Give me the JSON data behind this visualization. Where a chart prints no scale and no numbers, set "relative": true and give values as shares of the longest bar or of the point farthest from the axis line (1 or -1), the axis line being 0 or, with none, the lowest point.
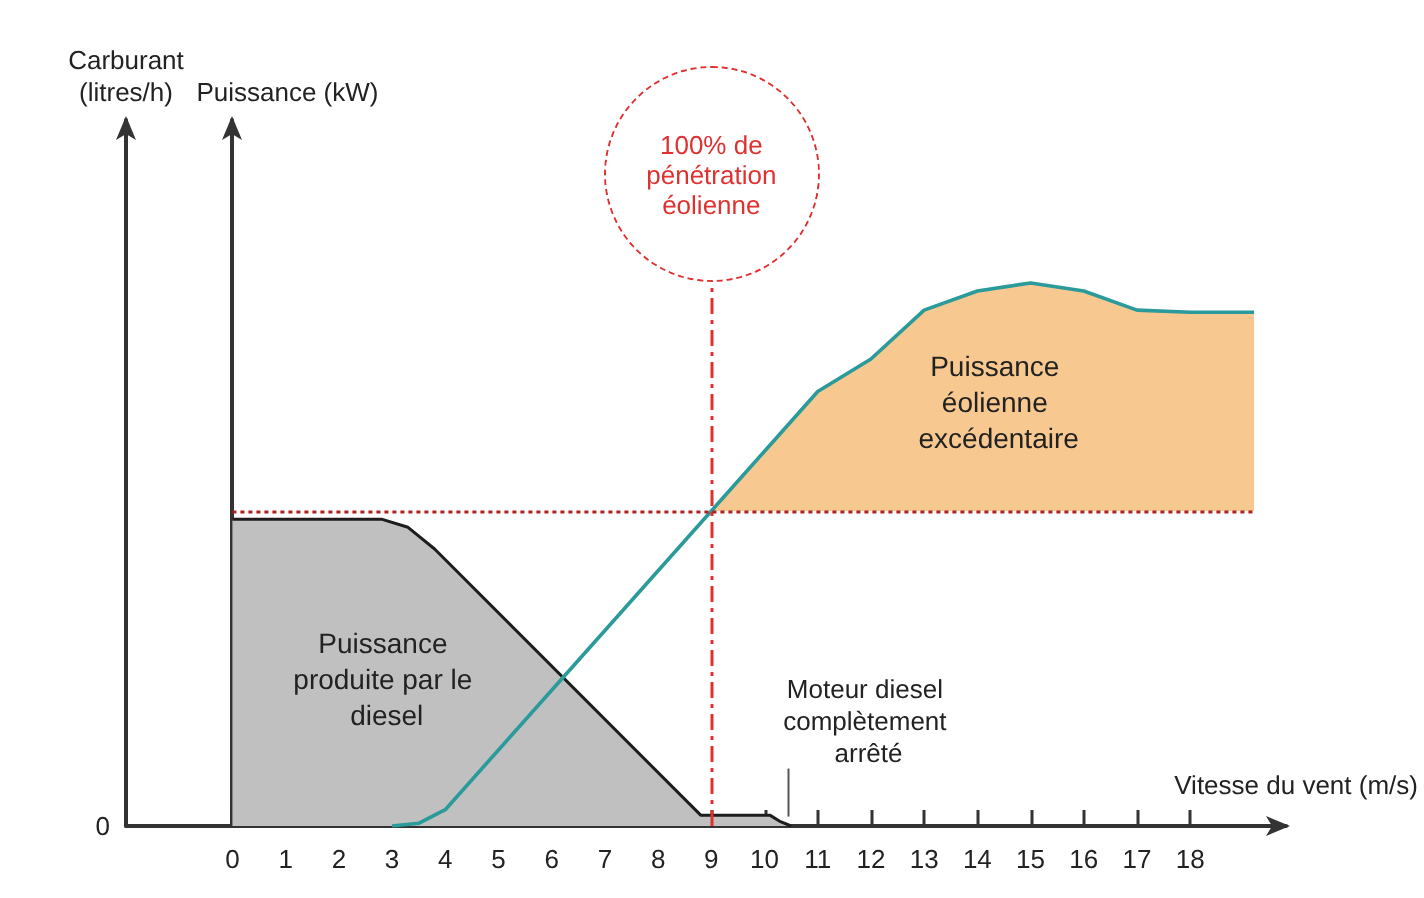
{
  "chart_data": {
    "type": "line",
    "relative": true,
    "xlabel": "Vitesse du vent (m/s)",
    "xlim": [
      -2,
      19.8
    ],
    "xticks": [
      0,
      1,
      2,
      3,
      4,
      5,
      6,
      7,
      8,
      9,
      10,
      11,
      12,
      13,
      14,
      15,
      16,
      17,
      18
    ],
    "grid": false,
    "series": [
      {
        "type": "area",
        "color": "#c0c0c0",
        "x": [
          0,
          2.8,
          3.3,
          3.8,
          8.8,
          10.1,
          10.3,
          10.5
        ],
        "values": [
          0.565,
          0.565,
          0.55,
          0.51,
          0.02,
          0.02,
          0.008,
          0
        ]
      },
      {
        "type": "area",
        "color": "#f8c891",
        "x": [
          9,
          10,
          11,
          12,
          13,
          14,
          15,
          16,
          17,
          18,
          19.2
        ],
        "values": [
          0.58,
          0.69,
          0.8,
          0.86,
          0.95,
          0.985,
          1,
          0.985,
          0.95,
          0.946,
          0.946
        ]
      },
      {
        "color": "#2a9a9a",
        "x": [
          3,
          3.5,
          4,
          5,
          6,
          7,
          8,
          9,
          10,
          11,
          12,
          13,
          14,
          15,
          16,
          17,
          18,
          19.2
        ],
        "values": [
          0,
          0.005,
          0.03,
          0.14,
          0.25,
          0.36,
          0.47,
          0.58,
          0.69,
          0.8,
          0.86,
          0.95,
          0.985,
          1,
          0.985,
          0.95,
          0.946,
          0.946
        ]
      }
    ],
    "ref_lines": [
      {
        "axis": "x",
        "value": 9,
        "label": "100% de pénétration éolienne",
        "color": "#e03030",
        "line_style": "dashed"
      },
      {
        "axis": "y",
        "value": 0.58,
        "color": "#b02020",
        "line_style": "dotted"
      }
    ],
    "annotations": [
      "0",
      "Puissance produite par le diesel",
      "Puissance éolienne excédentaire",
      {
        "text": "Moteur diesel complètement arrêté",
        "x": 10.3,
        "y": 0.01
      },
      "Carburant (litres/h)",
      "Puissance (kW)"
    ]
  }
}
